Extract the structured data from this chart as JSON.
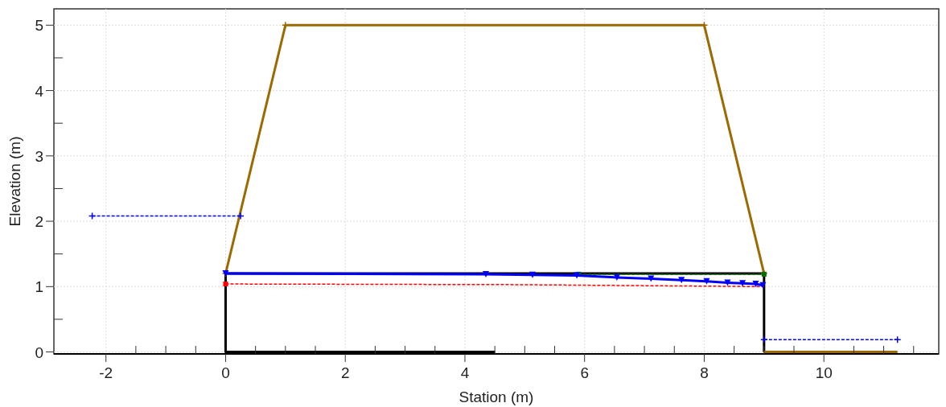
{
  "chart_data": {
    "type": "line",
    "xlabel": "Station (m)",
    "ylabel": "Elevation (m)",
    "xlim": [
      -2.87,
      11.92
    ],
    "ylim": [
      -0.03,
      5.25
    ],
    "xticks": [
      -2,
      {
        "value": -1.5,
        "label": null
      },
      {
        "value": -1,
        "label": null
      },
      {
        "value": -0.5,
        "label": null
      },
      0,
      {
        "value": 0.5,
        "label": null
      },
      {
        "value": 1,
        "label": null
      },
      {
        "value": 1.5,
        "label": null
      },
      2,
      {
        "value": 2.5,
        "label": null
      },
      {
        "value": 3,
        "label": null
      },
      {
        "value": 3.5,
        "label": null
      },
      4,
      {
        "value": 4.5,
        "label": null
      },
      {
        "value": 5,
        "label": null
      },
      {
        "value": 5.5,
        "label": null
      },
      6,
      {
        "value": 6.5,
        "label": null
      },
      {
        "value": 7,
        "label": null
      },
      {
        "value": 7.5,
        "label": null
      },
      8,
      {
        "value": 8.5,
        "label": null
      },
      {
        "value": 9,
        "label": null
      },
      {
        "value": 9.5,
        "label": null
      },
      10,
      {
        "value": 10.5,
        "label": null
      },
      {
        "value": 11,
        "label": null
      },
      {
        "value": 11.5,
        "label": null
      }
    ],
    "yticks": [
      0,
      {
        "value": 0.5,
        "label": null
      },
      1,
      {
        "value": 1.5,
        "label": null
      },
      2,
      {
        "value": 2.5,
        "label": null
      },
      3,
      {
        "value": 3.5,
        "label": null
      },
      4,
      {
        "value": 4.5,
        "label": null
      },
      5
    ],
    "grid": true,
    "series": [
      {
        "color": "#000000",
        "x": [
          4.5,
          0,
          0,
          9,
          9
        ],
        "values": [
          0,
          0,
          1.2,
          1.2,
          0
        ],
        "marker": "none",
        "line_style": "solid"
      },
      {
        "color": "#9c6a00",
        "x": [
          0,
          1,
          8,
          9
        ],
        "values": [
          1.2,
          5,
          5,
          1.2
        ],
        "marker": "cross",
        "line_style": "solid"
      },
      {
        "color": "#9c6a00",
        "x": [
          9,
          11.23
        ],
        "values": [
          0,
          0
        ],
        "marker": "none",
        "line_style": "solid"
      },
      {
        "color": "#007000",
        "x": [
          5.9,
          9
        ],
        "values": [
          1.19,
          1.19
        ],
        "marker": "square",
        "line_style": "dashed"
      },
      {
        "color": "#ff0000",
        "x": [
          0,
          4.8,
          9
        ],
        "values": [
          1.04,
          1.03,
          1.0
        ],
        "marker": "none",
        "line_style": "dashed"
      },
      {
        "type": "scatter",
        "color": "#ff0000",
        "x": [
          0
        ],
        "values": [
          1.04
        ],
        "marker": "square"
      },
      {
        "color": "#0000ff",
        "x": [
          0,
          4.35,
          5.13,
          5.87,
          6.54,
          7.11,
          7.62,
          8.04,
          8.39,
          8.64,
          8.86,
          8.98
        ],
        "values": [
          1.2,
          1.19,
          1.18,
          1.17,
          1.14,
          1.12,
          1.1,
          1.08,
          1.06,
          1.05,
          1.04,
          1.02
        ],
        "marker": "triangle",
        "line_style": "solid"
      },
      {
        "color": "#0000ff",
        "x": [
          -2.23,
          0.25
        ],
        "values": [
          2.08,
          2.08
        ],
        "marker": "cross",
        "line_style": "dashed"
      },
      {
        "color": "#0000ff",
        "x": [
          9,
          11.23
        ],
        "values": [
          0.19,
          0.19
        ],
        "marker": "cross",
        "line_style": "dashed"
      }
    ]
  }
}
